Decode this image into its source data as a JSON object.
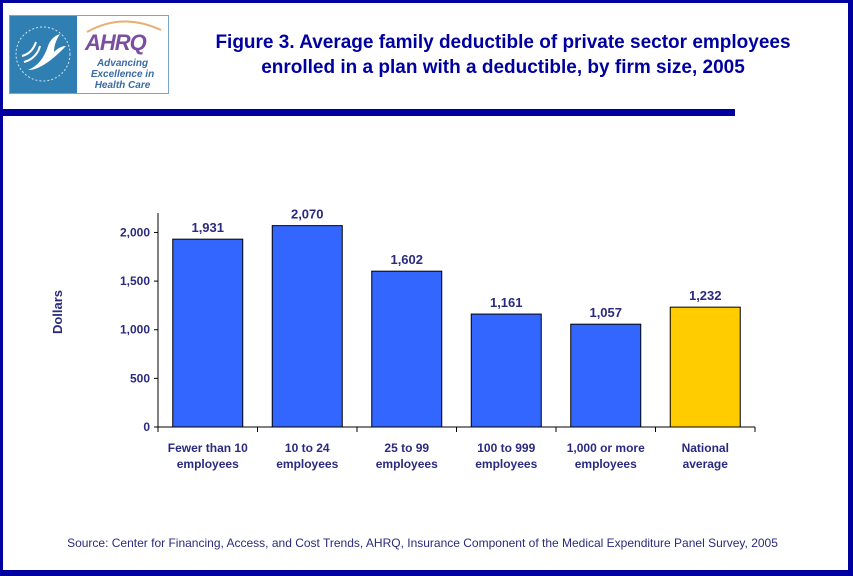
{
  "header": {
    "logo_hhs_alt": "Department of Health & Human Services USA",
    "logo_ahrq_word": "AHRQ",
    "logo_ahrq_tagline": [
      "Advancing",
      "Excellence in",
      "Health Care"
    ],
    "title_line1": "Figure 3. Average family deductible of private sector employees",
    "title_line2": "enrolled in a plan with a deductible, by firm size, 2005"
  },
  "footer": {
    "source": "Source: Center for Financing, Access, and Cost Trends, AHRQ, Insurance Component of the Medical Expenditure Panel Survey, 2005"
  },
  "colors": {
    "brand_navy": "#0000a0",
    "bar_blue": "#3366ff",
    "bar_highlight": "#ffcc00",
    "text": "#2a2a80"
  },
  "chart_data": {
    "type": "bar",
    "title": "Figure 3. Average family deductible of private sector employees enrolled in a plan with a deductible, by firm size, 2005",
    "xlabel": "",
    "ylabel": "Dollars",
    "ylim": [
      0,
      2200
    ],
    "yticks": [
      0,
      500,
      1000,
      1500,
      2000
    ],
    "ytick_labels": [
      "0",
      "500",
      "1,000",
      "1,500",
      "2,000"
    ],
    "grid": false,
    "legend": "none",
    "categories": [
      [
        "Fewer than 10",
        "employees"
      ],
      [
        "10 to 24",
        "employees"
      ],
      [
        "25 to 99",
        "employees"
      ],
      [
        "100 to 999",
        "employees"
      ],
      [
        "1,000 or more",
        "employees"
      ],
      [
        "National",
        "average"
      ]
    ],
    "values": [
      1931,
      2070,
      1602,
      1161,
      1057,
      1232
    ],
    "value_labels": [
      "1,931",
      "2,070",
      "1,602",
      "1,161",
      "1,057",
      "1,232"
    ],
    "highlight_index": 5
  }
}
